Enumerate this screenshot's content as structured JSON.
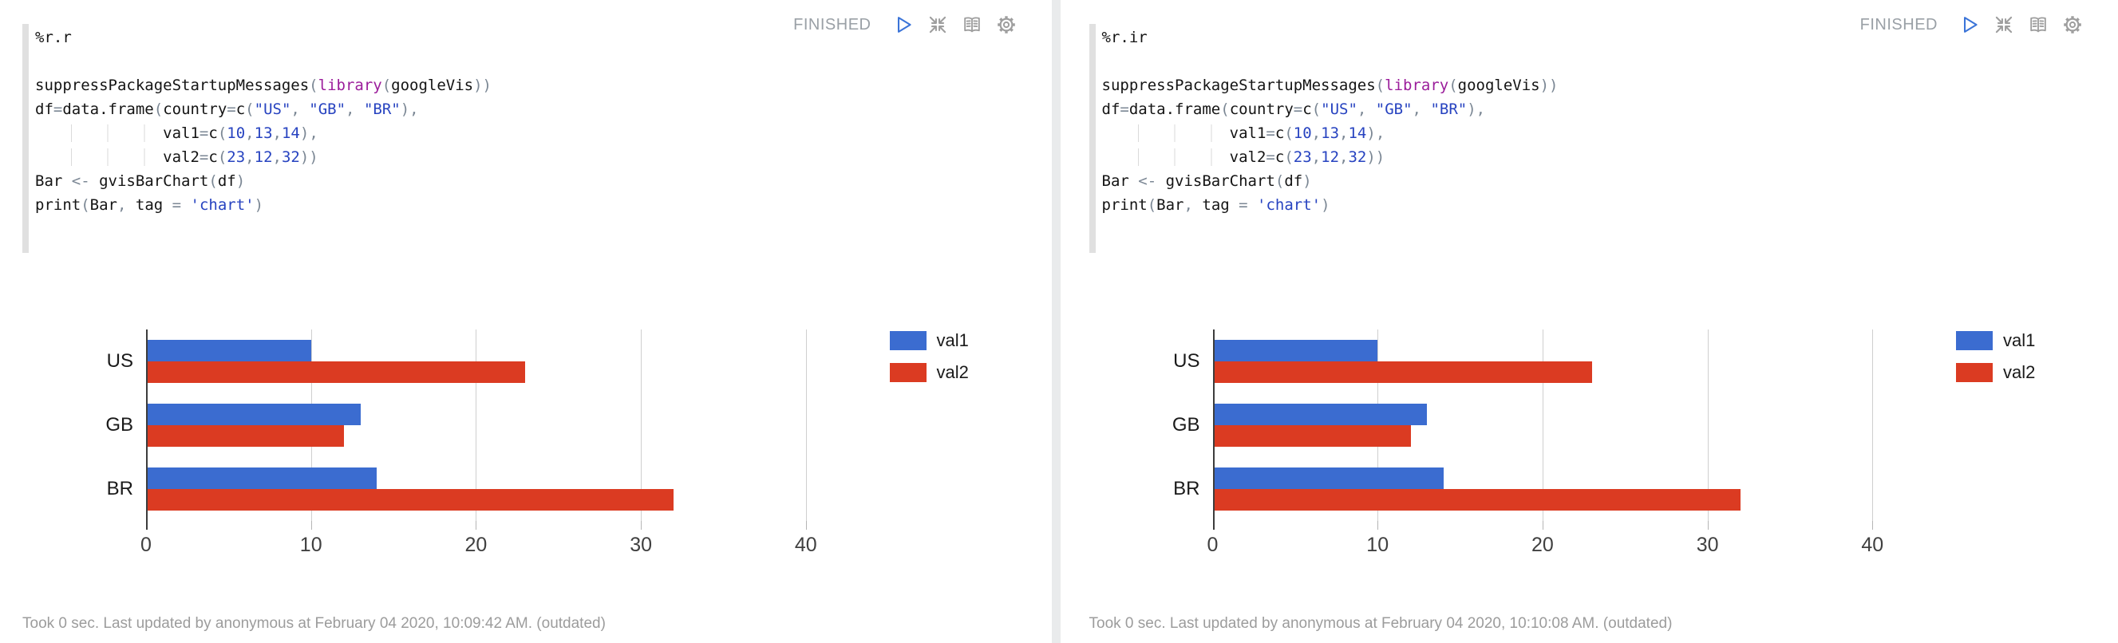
{
  "colors": {
    "run_icon_blue": "#3b74d8",
    "icon_gray": "#9e9e9e",
    "series_blue": "#3b6cd0",
    "series_red": "#db3b22"
  },
  "toolbar_icons": [
    "run-icon",
    "collapse-icon",
    "book-icon",
    "gear-icon"
  ],
  "panels": [
    {
      "status": "FINISHED",
      "footer": "Took 0 sec. Last updated by anonymous at February 04 2020, 10:09:42 AM. (outdated)",
      "code_lines": [
        [
          {
            "t": "%r.r",
            "y": "plain"
          }
        ],
        [],
        [
          {
            "t": "suppressPackageStartupMessages",
            "y": "plain"
          },
          {
            "t": "(",
            "y": "paren"
          },
          {
            "t": "library",
            "y": "keyword"
          },
          {
            "t": "(",
            "y": "paren"
          },
          {
            "t": "googleVis",
            "y": "plain"
          },
          {
            "t": "))",
            "y": "paren"
          }
        ],
        [
          {
            "t": "df",
            "y": "plain"
          },
          {
            "t": "=",
            "y": "op"
          },
          {
            "t": "data.frame",
            "y": "plain"
          },
          {
            "t": "(",
            "y": "paren"
          },
          {
            "t": "country",
            "y": "plain"
          },
          {
            "t": "=",
            "y": "op"
          },
          {
            "t": "c",
            "y": "plain"
          },
          {
            "t": "(",
            "y": "paren"
          },
          {
            "t": "\"US\"",
            "y": "literal"
          },
          {
            "t": ", ",
            "y": "op"
          },
          {
            "t": "\"GB\"",
            "y": "literal"
          },
          {
            "t": ", ",
            "y": "op"
          },
          {
            "t": "\"BR\"",
            "y": "literal"
          },
          {
            "t": ")",
            "y": "paren"
          },
          {
            "t": ",",
            "y": "op"
          }
        ],
        [
          {
            "t": "              ",
            "y": "indent"
          },
          {
            "t": "val1",
            "y": "plain"
          },
          {
            "t": "=",
            "y": "op"
          },
          {
            "t": "c",
            "y": "plain"
          },
          {
            "t": "(",
            "y": "paren"
          },
          {
            "t": "10",
            "y": "literal"
          },
          {
            "t": ",",
            "y": "op"
          },
          {
            "t": "13",
            "y": "literal"
          },
          {
            "t": ",",
            "y": "op"
          },
          {
            "t": "14",
            "y": "literal"
          },
          {
            "t": ")",
            "y": "paren"
          },
          {
            "t": ",",
            "y": "op"
          }
        ],
        [
          {
            "t": "              ",
            "y": "indent"
          },
          {
            "t": "val2",
            "y": "plain"
          },
          {
            "t": "=",
            "y": "op"
          },
          {
            "t": "c",
            "y": "plain"
          },
          {
            "t": "(",
            "y": "paren"
          },
          {
            "t": "23",
            "y": "literal"
          },
          {
            "t": ",",
            "y": "op"
          },
          {
            "t": "12",
            "y": "literal"
          },
          {
            "t": ",",
            "y": "op"
          },
          {
            "t": "32",
            "y": "literal"
          },
          {
            "t": "))",
            "y": "paren"
          }
        ],
        [
          {
            "t": "Bar ",
            "y": "plain"
          },
          {
            "t": "<- ",
            "y": "op"
          },
          {
            "t": "gvisBarChart",
            "y": "plain"
          },
          {
            "t": "(",
            "y": "paren"
          },
          {
            "t": "df",
            "y": "plain"
          },
          {
            "t": ")",
            "y": "paren"
          }
        ],
        [
          {
            "t": "print",
            "y": "plain"
          },
          {
            "t": "(",
            "y": "paren"
          },
          {
            "t": "Bar",
            "y": "plain"
          },
          {
            "t": ", ",
            "y": "op"
          },
          {
            "t": "tag ",
            "y": "plain"
          },
          {
            "t": "= ",
            "y": "op"
          },
          {
            "t": "'chart'",
            "y": "literal"
          },
          {
            "t": ")",
            "y": "paren"
          }
        ]
      ],
      "chart_data": {
        "type": "bar",
        "orientation": "horizontal",
        "title": "",
        "categories": [
          "US",
          "GB",
          "BR"
        ],
        "series": [
          {
            "name": "val1",
            "color": "#3b6cd0",
            "values": [
              10,
              13,
              14
            ]
          },
          {
            "name": "val2",
            "color": "#db3b22",
            "values": [
              23,
              12,
              32
            ]
          }
        ],
        "x_ticks": [
          0,
          10,
          20,
          30,
          40
        ],
        "xlim": [
          0,
          44
        ],
        "grid": true,
        "legend_position": "right"
      }
    },
    {
      "status": "FINISHED",
      "footer": "Took 0 sec. Last updated by anonymous at February 04 2020, 10:10:08 AM. (outdated)",
      "code_lines": [
        [
          {
            "t": "%r.ir",
            "y": "plain"
          }
        ],
        [],
        [
          {
            "t": "suppressPackageStartupMessages",
            "y": "plain"
          },
          {
            "t": "(",
            "y": "paren"
          },
          {
            "t": "library",
            "y": "keyword"
          },
          {
            "t": "(",
            "y": "paren"
          },
          {
            "t": "googleVis",
            "y": "plain"
          },
          {
            "t": "))",
            "y": "paren"
          }
        ],
        [
          {
            "t": "df",
            "y": "plain"
          },
          {
            "t": "=",
            "y": "op"
          },
          {
            "t": "data.frame",
            "y": "plain"
          },
          {
            "t": "(",
            "y": "paren"
          },
          {
            "t": "country",
            "y": "plain"
          },
          {
            "t": "=",
            "y": "op"
          },
          {
            "t": "c",
            "y": "plain"
          },
          {
            "t": "(",
            "y": "paren"
          },
          {
            "t": "\"US\"",
            "y": "literal"
          },
          {
            "t": ", ",
            "y": "op"
          },
          {
            "t": "\"GB\"",
            "y": "literal"
          },
          {
            "t": ", ",
            "y": "op"
          },
          {
            "t": "\"BR\"",
            "y": "literal"
          },
          {
            "t": ")",
            "y": "paren"
          },
          {
            "t": ",",
            "y": "op"
          }
        ],
        [
          {
            "t": "              ",
            "y": "indent"
          },
          {
            "t": "val1",
            "y": "plain"
          },
          {
            "t": "=",
            "y": "op"
          },
          {
            "t": "c",
            "y": "plain"
          },
          {
            "t": "(",
            "y": "paren"
          },
          {
            "t": "10",
            "y": "literal"
          },
          {
            "t": ",",
            "y": "op"
          },
          {
            "t": "13",
            "y": "literal"
          },
          {
            "t": ",",
            "y": "op"
          },
          {
            "t": "14",
            "y": "literal"
          },
          {
            "t": ")",
            "y": "paren"
          },
          {
            "t": ",",
            "y": "op"
          }
        ],
        [
          {
            "t": "              ",
            "y": "indent"
          },
          {
            "t": "val2",
            "y": "plain"
          },
          {
            "t": "=",
            "y": "op"
          },
          {
            "t": "c",
            "y": "plain"
          },
          {
            "t": "(",
            "y": "paren"
          },
          {
            "t": "23",
            "y": "literal"
          },
          {
            "t": ",",
            "y": "op"
          },
          {
            "t": "12",
            "y": "literal"
          },
          {
            "t": ",",
            "y": "op"
          },
          {
            "t": "32",
            "y": "literal"
          },
          {
            "t": "))",
            "y": "paren"
          }
        ],
        [
          {
            "t": "Bar ",
            "y": "plain"
          },
          {
            "t": "<- ",
            "y": "op"
          },
          {
            "t": "gvisBarChart",
            "y": "plain"
          },
          {
            "t": "(",
            "y": "paren"
          },
          {
            "t": "df",
            "y": "plain"
          },
          {
            "t": ")",
            "y": "paren"
          }
        ],
        [
          {
            "t": "print",
            "y": "plain"
          },
          {
            "t": "(",
            "y": "paren"
          },
          {
            "t": "Bar",
            "y": "plain"
          },
          {
            "t": ", ",
            "y": "op"
          },
          {
            "t": "tag ",
            "y": "plain"
          },
          {
            "t": "= ",
            "y": "op"
          },
          {
            "t": "'chart'",
            "y": "literal"
          },
          {
            "t": ")",
            "y": "paren"
          }
        ]
      ],
      "chart_data": {
        "type": "bar",
        "orientation": "horizontal",
        "title": "",
        "categories": [
          "US",
          "GB",
          "BR"
        ],
        "series": [
          {
            "name": "val1",
            "color": "#3b6cd0",
            "values": [
              10,
              13,
              14
            ]
          },
          {
            "name": "val2",
            "color": "#db3b22",
            "values": [
              23,
              12,
              32
            ]
          }
        ],
        "x_ticks": [
          0,
          10,
          20,
          30,
          40
        ],
        "xlim": [
          0,
          44
        ],
        "grid": true,
        "legend_position": "right"
      }
    }
  ]
}
